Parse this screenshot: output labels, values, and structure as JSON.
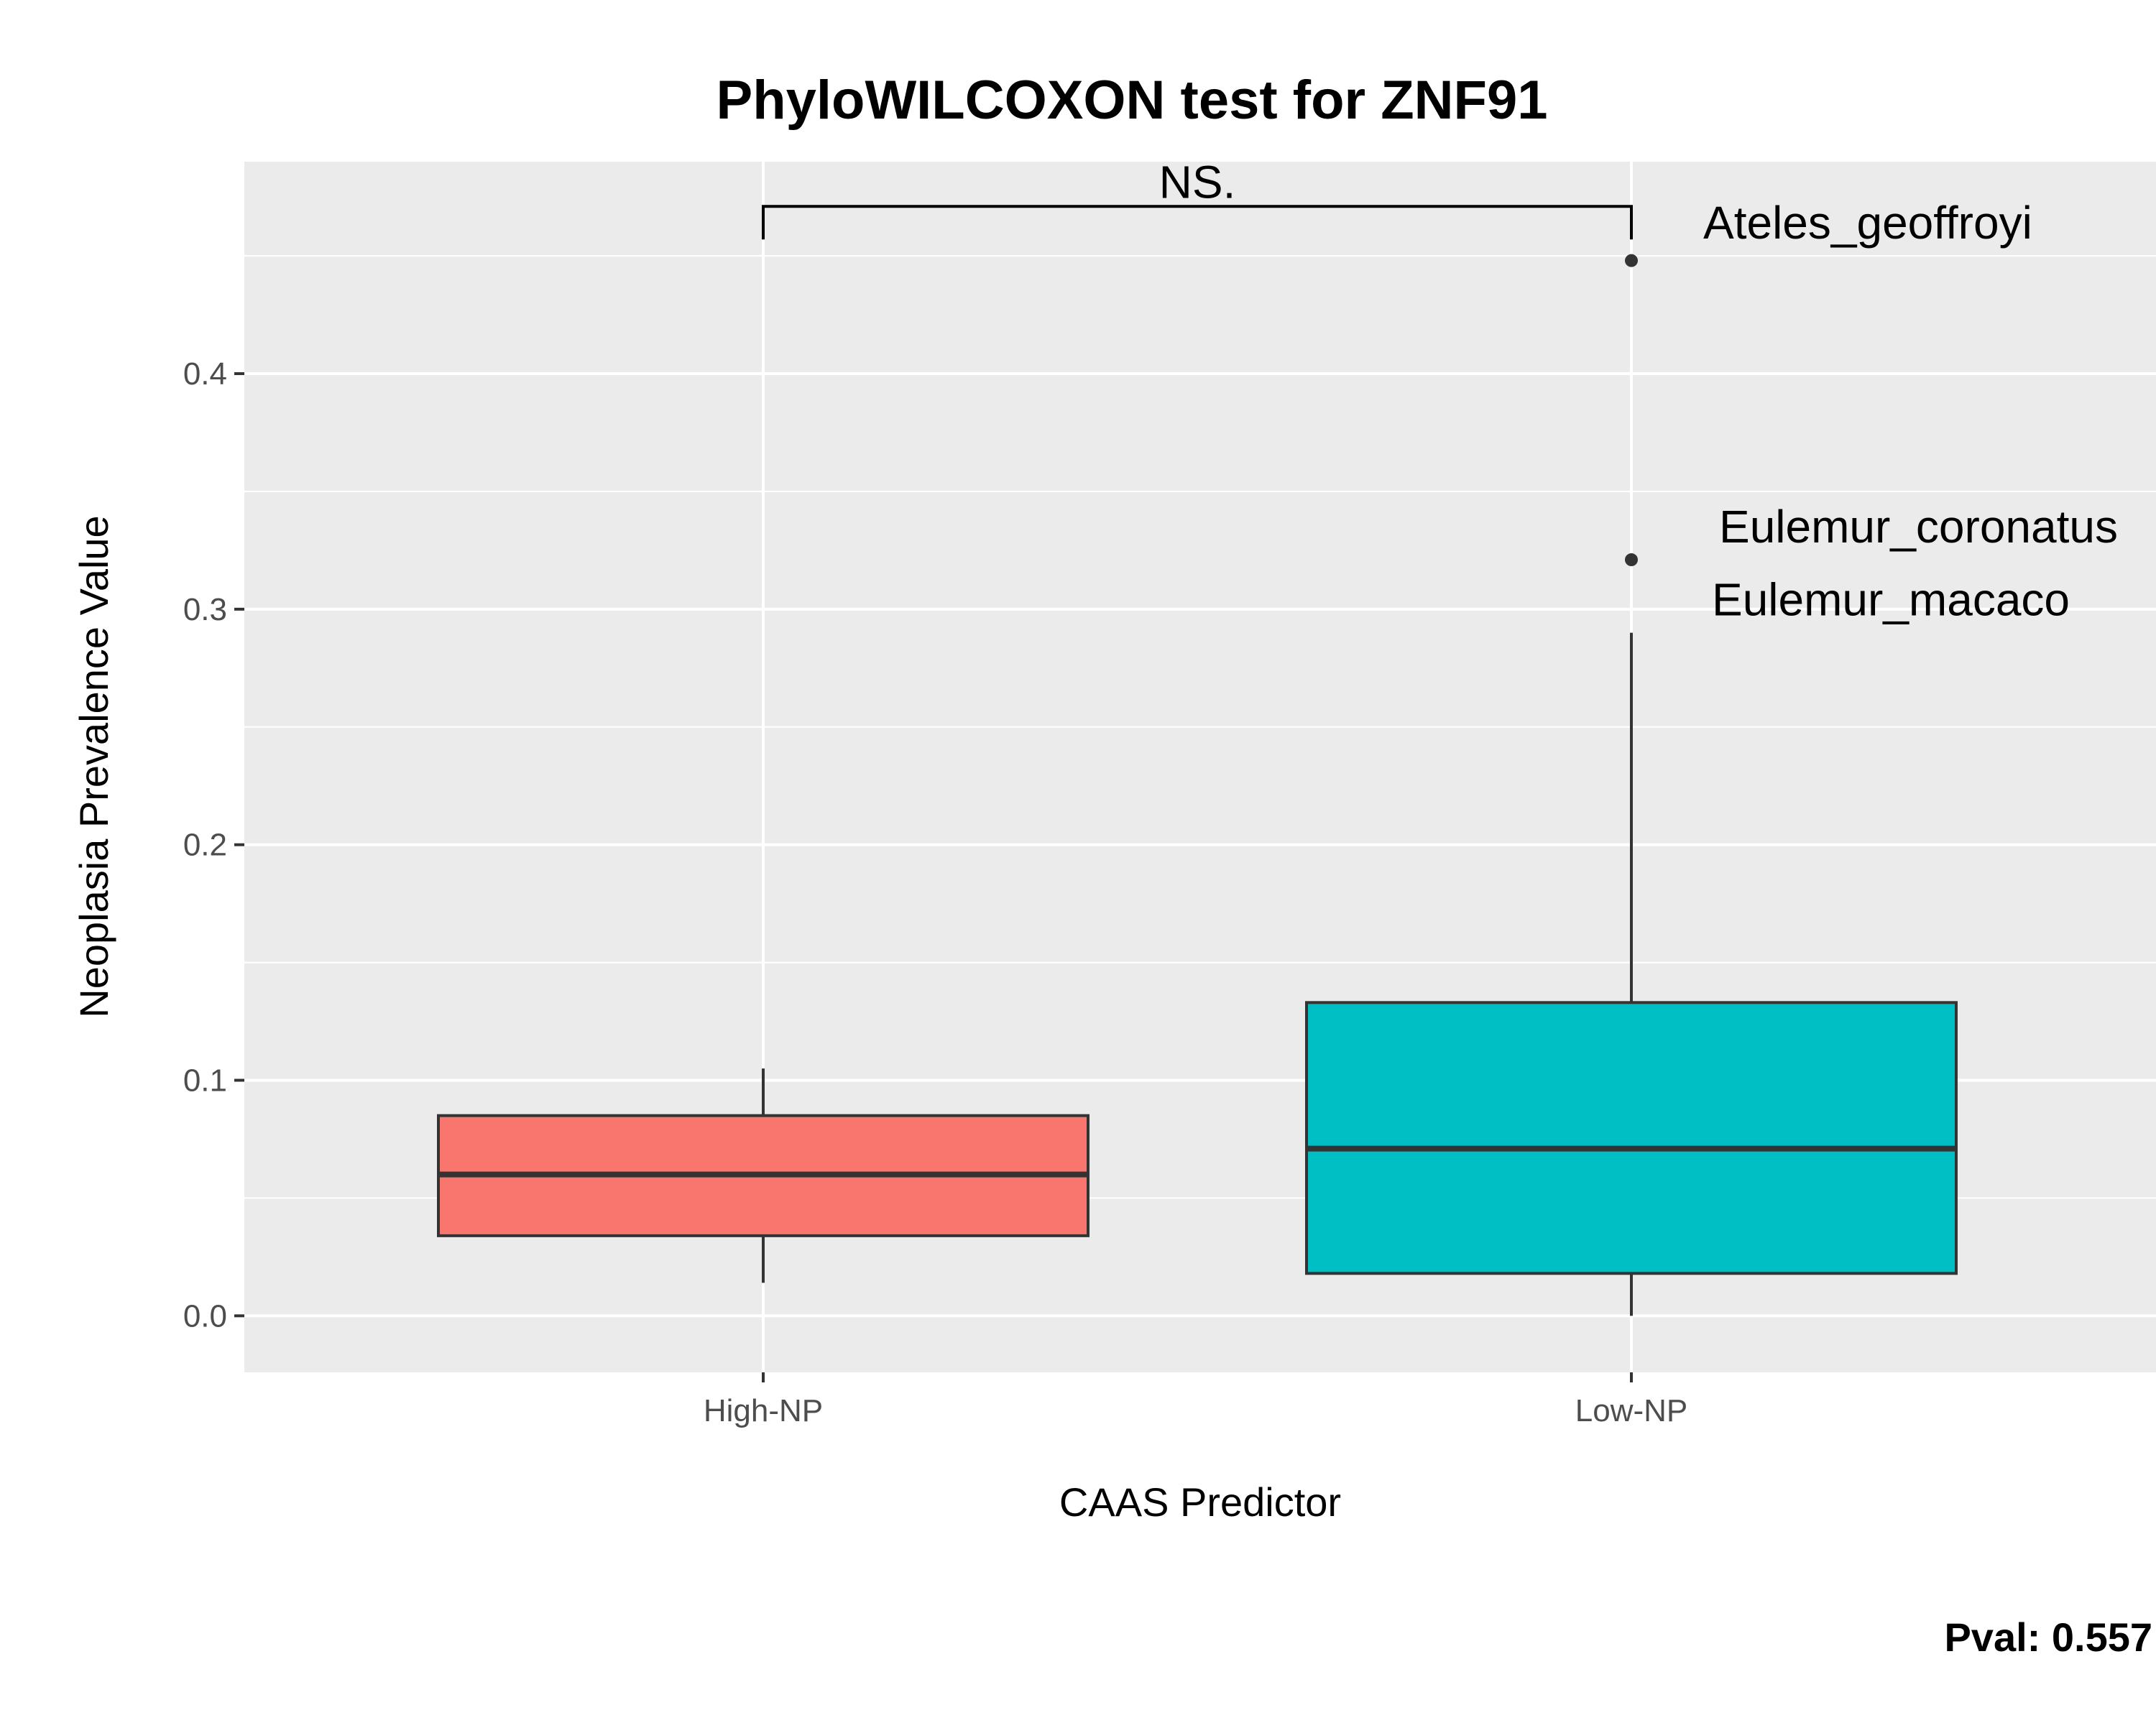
{
  "chart_data": {
    "type": "boxplot",
    "title": "PhyloWILCOXON test for ZNF91",
    "xlabel": "CAAS Predictor",
    "ylabel": "Neoplasia Prevalence Value",
    "categories": [
      "High-NP",
      "Low-NP"
    ],
    "ylim": [
      -0.024,
      0.49
    ],
    "yticks": [
      0.0,
      0.1,
      0.2,
      0.3,
      0.4
    ],
    "ytick_labels": [
      "0.0",
      "0.1",
      "0.2",
      "0.3",
      "0.4"
    ],
    "grid": true,
    "boxes": [
      {
        "category": "High-NP",
        "min": 0.014,
        "q1": 0.034,
        "median": 0.06,
        "q3": 0.085,
        "max": 0.105,
        "fill": "#F8766D"
      },
      {
        "category": "Low-NP",
        "min": 0.0,
        "q1": 0.018,
        "median": 0.071,
        "q3": 0.133,
        "max": 0.29,
        "fill": "#00BFC4"
      }
    ],
    "outliers": [
      {
        "category": "Low-NP",
        "y": 0.448
      },
      {
        "category": "Low-NP",
        "y": 0.321
      }
    ],
    "point_labels": [
      {
        "text": "Ateles_geoffroyi",
        "category": "Low-NP",
        "y": 0.464
      },
      {
        "text": "Eulemur_coronatus",
        "category": "Low-NP",
        "y": 0.335
      },
      {
        "text": "Eulemur_macaco",
        "category": "Low-NP",
        "y": 0.304
      }
    ],
    "significance": {
      "label": "NS.",
      "from": "High-NP",
      "to": "Low-NP",
      "y": 0.471
    },
    "pvalue_text": "Pval:  0.557",
    "colors": {
      "panel_bg": "#EBEBEB",
      "grid": "#FFFFFF",
      "box_outline": "#333333",
      "outlier": "#333333"
    }
  }
}
